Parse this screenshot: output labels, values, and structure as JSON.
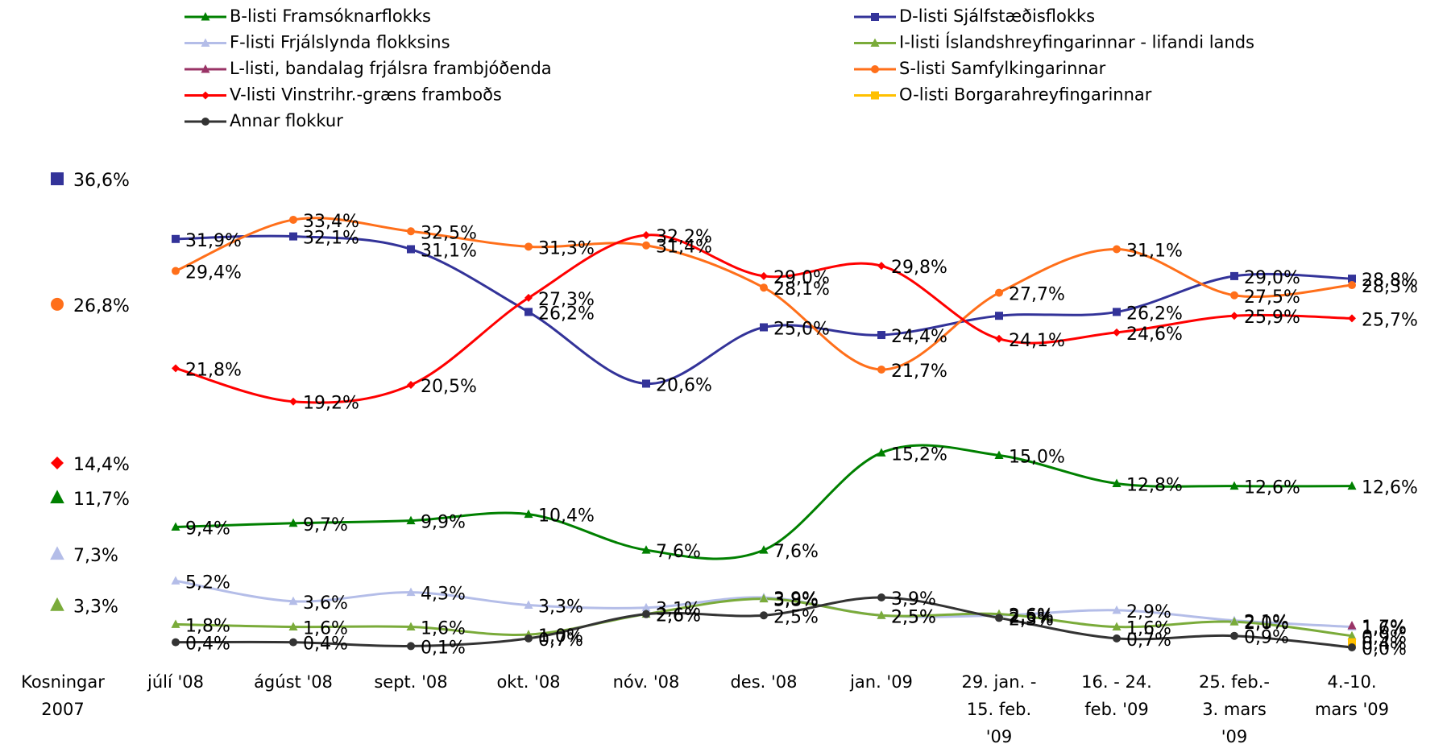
{
  "chart_data": {
    "type": "line",
    "categories": [
      "Kosningar\n2007",
      "júlí '08",
      "ágúst '08",
      "sept. '08",
      "okt. '08",
      "nóv. '08",
      "des. '08",
      "jan. '09",
      "29. jan. -\n15. feb.\n'09",
      "16. - 24.\nfeb. '09",
      "25. feb.-\n3. mars\n'09",
      "4.-10.\nmars '09"
    ],
    "series": [
      {
        "name": "B-listi Framsóknarflokks",
        "color": "#008000",
        "label_color": "#000000",
        "marker": "triangle",
        "values": [
          11.7,
          9.4,
          9.7,
          9.9,
          10.4,
          7.6,
          7.6,
          15.2,
          15.0,
          12.8,
          12.6,
          12.6
        ],
        "value_labels": [
          "11,7%",
          "9,4%",
          "9,7%",
          "9,9%",
          "10,4%",
          "7,6%",
          "7,6%",
          "15,2%",
          "15,0%",
          "12,8%",
          "12,6%",
          "12,6%"
        ]
      },
      {
        "name": "D-listi Sjálfstæðisflokks",
        "color": "#333399",
        "label_color": "#000000",
        "marker": "square",
        "values": [
          36.6,
          31.9,
          32.1,
          31.1,
          26.2,
          20.6,
          25.0,
          24.4,
          25.9,
          26.2,
          29.0,
          28.8
        ],
        "value_labels": [
          "36,6%",
          "31,9%",
          "32,1%",
          "31,1%",
          "26,2%",
          "20,6%",
          "25,0%",
          "24,4%",
          null,
          "26,2%",
          "29,0%",
          "28,8%"
        ]
      },
      {
        "name": "F-listi Frjálslynda flokksins",
        "color": "#b4bde8",
        "label_color": "#b4bde8",
        "marker": "triangle",
        "values": [
          7.3,
          5.2,
          3.6,
          4.3,
          3.3,
          3.1,
          3.9,
          2.5,
          2.5,
          2.9,
          2.1,
          1.6
        ],
        "value_labels": [
          "7,3%",
          "5,2%",
          "3,6%",
          "4,3%",
          "3,3%",
          "3,1%",
          "3,9%",
          "2,5%",
          "2,5%",
          "2,9%",
          "2,1%",
          "1,6%"
        ]
      },
      {
        "name": "I-listi Íslandshreyfingarinnar - lifandi lands",
        "color": "#7aab3a",
        "label_color": "#7aab3a",
        "marker": "triangle",
        "values": [
          3.3,
          1.8,
          1.6,
          1.6,
          1.0,
          2.6,
          3.8,
          2.5,
          2.6,
          1.6,
          2.0,
          0.9
        ],
        "value_labels": [
          "3,3%",
          "1,8%",
          "1,6%",
          "1,6%",
          "1,0%",
          "2,6%",
          "3,8%",
          "2,5%",
          "2,6%",
          "1,6%",
          "2,0%",
          "0,9%"
        ]
      },
      {
        "name": "L-listi, bandalag frjálsra frambjóðenda",
        "color": "#993366",
        "label_color": "#993366",
        "marker": "triangle",
        "values": [
          null,
          null,
          null,
          null,
          null,
          null,
          null,
          null,
          null,
          null,
          null,
          1.7
        ],
        "value_labels": [
          null,
          null,
          null,
          null,
          null,
          null,
          null,
          null,
          null,
          null,
          null,
          "1,7%"
        ]
      },
      {
        "name": "S-listi Samfylkingarinnar",
        "color": "#ff6f1a",
        "label_color": "#000000",
        "marker": "circle",
        "values": [
          26.8,
          29.4,
          33.4,
          32.5,
          31.3,
          31.4,
          28.1,
          21.7,
          27.7,
          31.1,
          27.5,
          28.3
        ],
        "value_labels": [
          "26,8%",
          "29,4%",
          "33,4%",
          "32,5%",
          "31,3%",
          "31,4%",
          "28,1%",
          "21,7%",
          "27,7%",
          "31,1%",
          "27,5%",
          "28,3%"
        ]
      },
      {
        "name": "V-listi Vinstrihr.-græns framboðs",
        "color": "#ff0000",
        "label_color": "#000000",
        "marker": "diamond",
        "values": [
          14.4,
          21.8,
          19.2,
          20.5,
          27.3,
          32.2,
          29.0,
          29.8,
          24.1,
          24.6,
          25.9,
          25.7
        ],
        "value_labels": [
          "14,4%",
          "21,8%",
          "19,2%",
          "20,5%",
          "27,3%",
          "32,2%",
          "29,0%",
          "29,8%",
          "24,1%",
          "24,6%",
          "25,9%",
          "25,7%"
        ]
      },
      {
        "name": "O-listi Borgarahreyfingarinnar",
        "color": "#ffc000",
        "label_color": "#ffc000",
        "marker": "square",
        "values": [
          null,
          null,
          null,
          null,
          null,
          null,
          null,
          null,
          null,
          null,
          null,
          0.4
        ],
        "value_labels": [
          null,
          null,
          null,
          null,
          null,
          null,
          null,
          null,
          null,
          null,
          null,
          "0,4%"
        ]
      },
      {
        "name": "Annar flokkur",
        "color": "#333333",
        "label_color": "#000000",
        "marker": "circle",
        "values": [
          null,
          0.4,
          0.4,
          0.1,
          0.7,
          2.6,
          2.5,
          3.9,
          2.3,
          0.7,
          0.9,
          0.0
        ],
        "value_labels": [
          null,
          "0,4%",
          "0,4%",
          "0,1%",
          "0,7%",
          "2,6%",
          "2,5%",
          "3,9%",
          "2,3%",
          "0,7%",
          "0,9%",
          "0,0%"
        ]
      }
    ],
    "legend": "top"
  }
}
